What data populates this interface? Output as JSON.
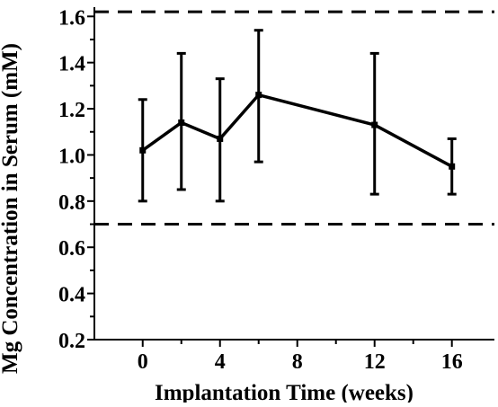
{
  "chart_data": {
    "type": "line",
    "xlabel": "Implantation Time (weeks)",
    "ylabel": "Mg Concentration in Serum (mM)",
    "xlim": [
      -2.5,
      18.2
    ],
    "ylim": [
      0.2,
      1.64
    ],
    "x_ticks": [
      0,
      4,
      8,
      12,
      16
    ],
    "x_tick_labels": [
      "0",
      "4",
      "8",
      "12",
      "16"
    ],
    "x_minor_ticks": [
      2,
      6,
      10,
      14
    ],
    "y_ticks": [
      0.2,
      0.4,
      0.6,
      0.8,
      1.0,
      1.2,
      1.4,
      1.6
    ],
    "y_tick_labels": [
      "0.2",
      "0.4",
      "0.6",
      "0.8",
      "1.0",
      "1.2",
      "1.4",
      "1.6"
    ],
    "y_minor_ticks": [
      0.3,
      0.5,
      0.7,
      0.9,
      1.1,
      1.3,
      1.5
    ],
    "grid": false,
    "legend": false,
    "line_color": "#000000",
    "series": [
      {
        "x": [
          0,
          2,
          4,
          6,
          12,
          16
        ],
        "y": [
          1.02,
          1.14,
          1.07,
          1.26,
          1.13,
          0.95
        ],
        "error_low": [
          0.8,
          0.85,
          0.8,
          0.97,
          0.83,
          0.83
        ],
        "error_high": [
          1.24,
          1.44,
          1.33,
          1.54,
          1.44,
          1.07
        ]
      }
    ],
    "reference_lines": [
      {
        "y": 1.62,
        "style": "dashed"
      },
      {
        "y": 0.7,
        "style": "dashed"
      }
    ]
  }
}
